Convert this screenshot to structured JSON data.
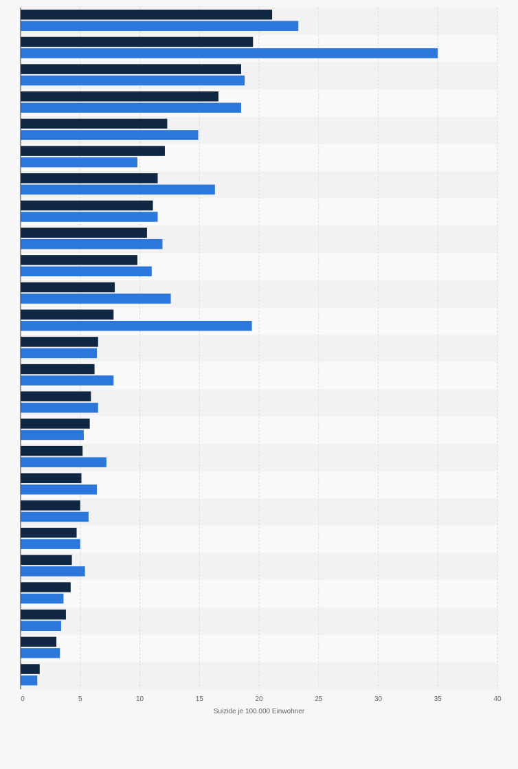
{
  "chart_data": {
    "type": "bar",
    "orientation": "horizontal",
    "xlabel": "Suizide je 100.000 Einwohner",
    "xlim": [
      0,
      40
    ],
    "xticks": [
      0,
      5,
      10,
      15,
      20,
      25,
      30,
      35,
      40
    ],
    "grid": true,
    "series": [
      {
        "color": "#0f2742",
        "values": [
          21.1,
          19.5,
          18.5,
          16.6,
          12.3,
          12.1,
          11.5,
          11.1,
          10.6,
          9.8,
          7.9,
          7.8,
          6.5,
          6.2,
          5.9,
          5.8,
          5.2,
          5.1,
          5.0,
          4.7,
          4.3,
          4.2,
          3.8,
          3.0,
          1.6
        ]
      },
      {
        "color": "#2c77dc",
        "values": [
          23.3,
          35.0,
          18.8,
          18.5,
          14.9,
          9.8,
          16.3,
          11.5,
          11.9,
          11.0,
          12.6,
          19.4,
          6.4,
          7.8,
          6.5,
          5.3,
          7.2,
          6.4,
          5.7,
          5.0,
          5.4,
          3.6,
          3.4,
          3.3,
          1.4
        ]
      }
    ]
  }
}
